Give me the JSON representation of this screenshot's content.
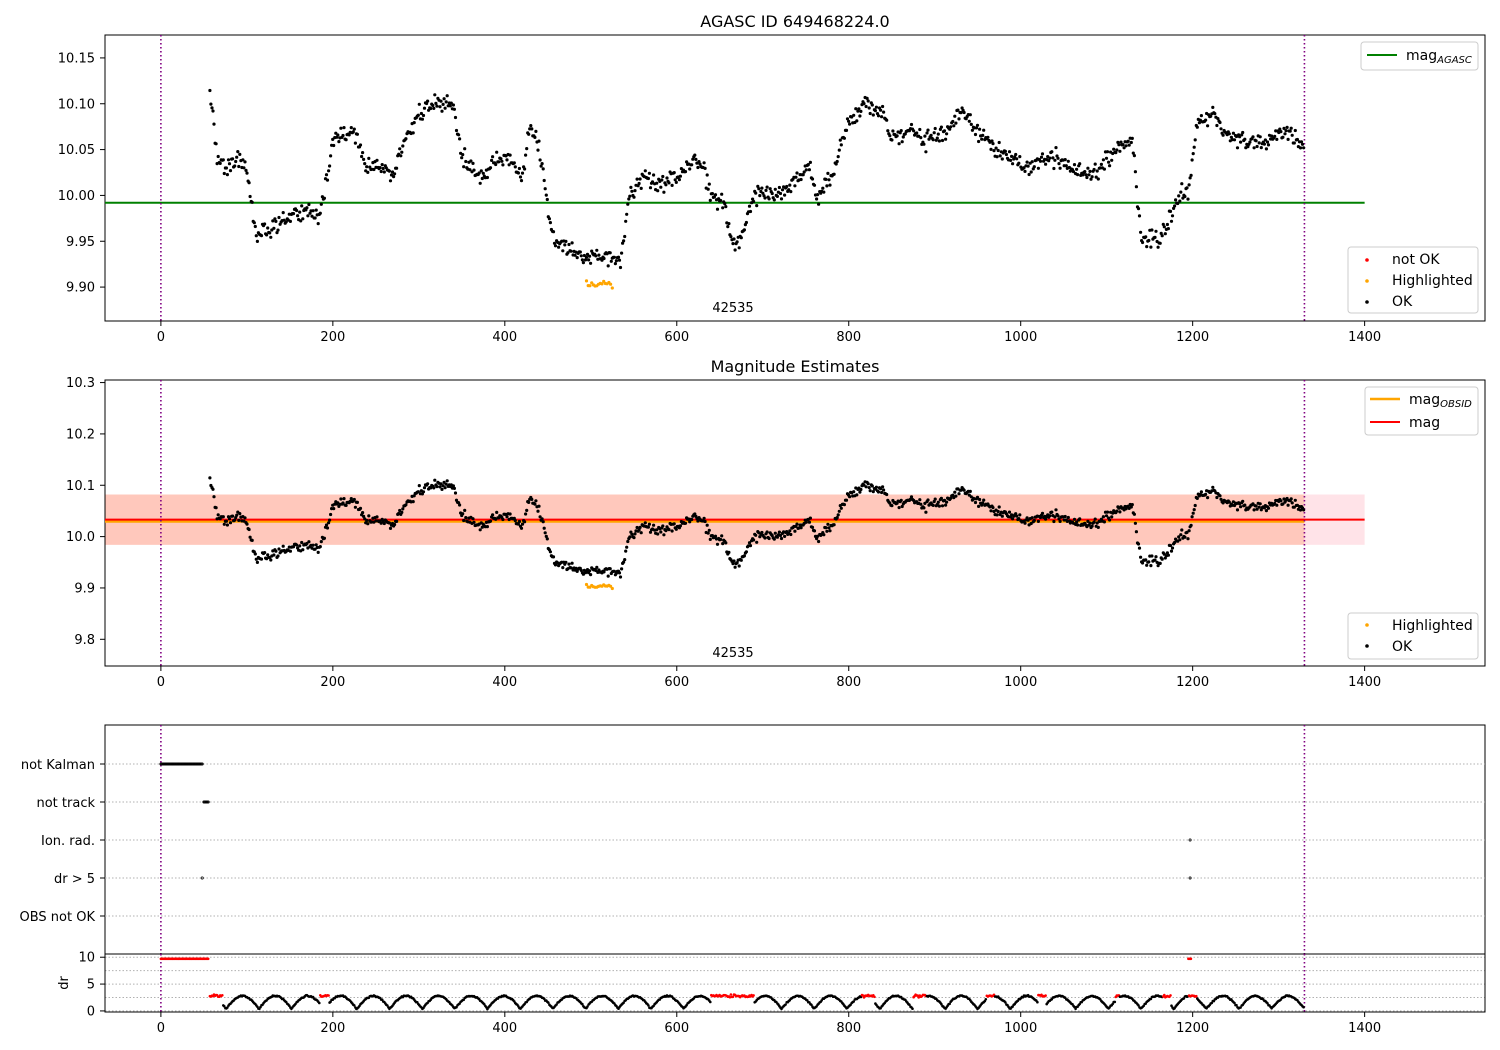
{
  "chart_data": [
    {
      "type": "scatter",
      "title": "AGASC ID 649468224.0",
      "xlim": [
        -65,
        1540
      ],
      "ylim": [
        9.863,
        10.175
      ],
      "xticks": [
        0,
        200,
        400,
        600,
        800,
        1000,
        1200,
        1400
      ],
      "yticks": [
        9.9,
        9.95,
        10.0,
        10.05,
        10.1,
        10.15
      ],
      "ytick_labels": [
        "9.90",
        "9.95",
        "10.00",
        "10.05",
        "10.10",
        "10.15"
      ],
      "hlines": [
        {
          "name": "mag",
          "subscript": "AGASC",
          "y": 9.992,
          "x_range": [
            -65,
            1400
          ],
          "color": "#008000"
        }
      ],
      "vlines": [
        {
          "x": 0,
          "color": "#800080",
          "style": "dotted"
        },
        {
          "x": 1330,
          "color": "#800080",
          "style": "dotted"
        }
      ],
      "annotation": {
        "text": "42535",
        "x": 665,
        "y": 9.87
      },
      "legend_top": {
        "placement": "top-right",
        "entries": [
          {
            "label": "mag",
            "subscript": "AGASC",
            "color": "#008000"
          }
        ]
      },
      "legend_bottom": {
        "placement": "bottom-right",
        "entries": [
          {
            "label": "not OK",
            "color": "#ff0000"
          },
          {
            "label": "Highlighted",
            "color": "#ffa500"
          },
          {
            "label": "OK",
            "color": "#000000"
          }
        ]
      },
      "series_profile": {
        "name": "OK",
        "color": "#000000",
        "x_range": [
          57,
          1330
        ],
        "points": [
          [
            57,
            10.12
          ],
          [
            65,
            10.04
          ],
          [
            75,
            10.03
          ],
          [
            90,
            10.04
          ],
          [
            100,
            10.03
          ],
          [
            110,
            9.955
          ],
          [
            130,
            9.965
          ],
          [
            150,
            9.975
          ],
          [
            170,
            9.985
          ],
          [
            185,
            9.975
          ],
          [
            200,
            10.06
          ],
          [
            225,
            10.07
          ],
          [
            240,
            10.03
          ],
          [
            260,
            10.03
          ],
          [
            270,
            10.02
          ],
          [
            280,
            10.05
          ],
          [
            300,
            10.09
          ],
          [
            320,
            10.1
          ],
          [
            340,
            10.1
          ],
          [
            350,
            10.04
          ],
          [
            375,
            10.02
          ],
          [
            390,
            10.04
          ],
          [
            405,
            10.04
          ],
          [
            420,
            10.02
          ],
          [
            430,
            10.08
          ],
          [
            440,
            10.05
          ],
          [
            455,
            9.955
          ],
          [
            475,
            9.94
          ],
          [
            495,
            9.93
          ],
          [
            515,
            9.935
          ],
          [
            535,
            9.93
          ],
          [
            545,
            10.0
          ],
          [
            560,
            10.02
          ],
          [
            580,
            10.01
          ],
          [
            600,
            10.02
          ],
          [
            620,
            10.04
          ],
          [
            630,
            10.03
          ],
          [
            640,
            10.0
          ],
          [
            655,
            9.99
          ],
          [
            665,
            9.95
          ],
          [
            675,
            9.955
          ],
          [
            690,
            10.0
          ],
          [
            705,
            10.0
          ],
          [
            720,
            10.0
          ],
          [
            740,
            10.02
          ],
          [
            755,
            10.03
          ],
          [
            765,
            10.0
          ],
          [
            780,
            10.02
          ],
          [
            800,
            10.08
          ],
          [
            820,
            10.1
          ],
          [
            840,
            10.09
          ],
          [
            850,
            10.06
          ],
          [
            870,
            10.07
          ],
          [
            890,
            10.06
          ],
          [
            910,
            10.07
          ],
          [
            930,
            10.09
          ],
          [
            950,
            10.07
          ],
          [
            970,
            10.05
          ],
          [
            990,
            10.04
          ],
          [
            1010,
            10.03
          ],
          [
            1030,
            10.04
          ],
          [
            1045,
            10.04
          ],
          [
            1060,
            10.03
          ],
          [
            1075,
            10.02
          ],
          [
            1090,
            10.03
          ],
          [
            1110,
            10.05
          ],
          [
            1130,
            10.06
          ],
          [
            1140,
            9.955
          ],
          [
            1160,
            9.95
          ],
          [
            1170,
            9.97
          ],
          [
            1185,
            10.0
          ],
          [
            1195,
            10.005
          ],
          [
            1205,
            10.08
          ],
          [
            1225,
            10.09
          ],
          [
            1235,
            10.07
          ],
          [
            1260,
            10.06
          ],
          [
            1285,
            10.06
          ],
          [
            1310,
            10.07
          ],
          [
            1330,
            10.05
          ]
        ]
      },
      "highlighted": {
        "name": "Highlighted",
        "color": "#ffa500",
        "x_range": [
          495,
          525
        ],
        "y_approx": 9.903
      }
    },
    {
      "type": "scatter",
      "title": "Magnitude Estimates",
      "xlim": [
        -65,
        1540
      ],
      "ylim": [
        9.748,
        10.305
      ],
      "xticks": [
        0,
        200,
        400,
        600,
        800,
        1000,
        1200,
        1400
      ],
      "yticks": [
        9.8,
        9.9,
        10.0,
        10.1,
        10.2,
        10.3
      ],
      "ytick_labels": [
        "9.8",
        "9.9",
        "10.0",
        "10.1",
        "10.2",
        "10.3"
      ],
      "hlines": [
        {
          "name": "mag",
          "subscript": "OBSID",
          "y": 10.03,
          "x_range": [
            -65,
            1330
          ],
          "color": "#ffa500"
        },
        {
          "name": "mag",
          "y": 10.033,
          "x_range": [
            -65,
            1400
          ],
          "color": "#ff0000"
        }
      ],
      "bands": [
        {
          "y": [
            9.984,
            10.082
          ],
          "x_range": [
            -65,
            1400
          ],
          "color": "#ffc0cb"
        },
        {
          "y": [
            9.984,
            10.082
          ],
          "x_range": [
            -65,
            1330
          ],
          "color": "#ffa07a"
        }
      ],
      "vlines": [
        {
          "x": 0,
          "color": "#800080",
          "style": "dotted"
        },
        {
          "x": 1330,
          "color": "#800080",
          "style": "dotted"
        }
      ],
      "annotation": {
        "text": "42535",
        "x": 665,
        "y": 9.765
      },
      "legend_top": {
        "placement": "top-right",
        "entries": [
          {
            "label": "mag",
            "subscript": "OBSID",
            "color": "#ffa500"
          },
          {
            "label": "mag",
            "color": "#ff0000"
          }
        ]
      },
      "legend_bottom": {
        "placement": "bottom-right",
        "entries": [
          {
            "label": "Highlighted",
            "color": "#ffa500"
          },
          {
            "label": "OK",
            "color": "#000000"
          }
        ]
      }
    },
    {
      "type": "scatter",
      "title": "",
      "xlim": [
        -65,
        1540
      ],
      "categories": [
        "not Kalman",
        "not track",
        "Ion. rad.",
        "dr > 5",
        "OBS not OK"
      ],
      "flags": [
        {
          "category": "not Kalman",
          "x_range": [
            0,
            48
          ]
        },
        {
          "category": "not track",
          "x_range": [
            50,
            55
          ]
        },
        {
          "category": "Ion. rad.",
          "x": [
            1197
          ]
        },
        {
          "category": "dr > 5",
          "x": [
            48,
            1197
          ]
        }
      ],
      "vlines": [
        {
          "x": 0,
          "color": "#800080",
          "style": "dotted"
        },
        {
          "x": 1330,
          "color": "#800080",
          "style": "dotted"
        }
      ]
    },
    {
      "type": "scatter",
      "ylabel": "dr",
      "xlim": [
        -65,
        1540
      ],
      "ylim": [
        -0.2,
        10.6
      ],
      "xticks": [
        0,
        200,
        400,
        600,
        800,
        1000,
        1200,
        1400
      ],
      "yticks": [
        0,
        5,
        10
      ],
      "ytick_labels": [
        "0",
        "5",
        "10"
      ],
      "high_segments": [
        {
          "x_range": [
            0,
            55
          ],
          "y": 9.7,
          "color": "#ff0000"
        },
        {
          "x_range": [
            1195,
            1198
          ],
          "y": 9.7,
          "color": "#ff0000"
        }
      ],
      "red_ranges": [
        [
          55,
          72
        ],
        [
          185,
          195
        ],
        [
          640,
          690
        ],
        [
          815,
          830
        ],
        [
          875,
          890
        ],
        [
          960,
          970
        ],
        [
          1020,
          1030
        ],
        [
          1110,
          1115
        ],
        [
          1165,
          1175
        ],
        [
          1195,
          1205
        ]
      ],
      "vlines": [
        {
          "x": 0,
          "color": "#800080",
          "style": "dotted"
        },
        {
          "x": 1330,
          "color": "#800080",
          "style": "dotted"
        }
      ]
    }
  ]
}
